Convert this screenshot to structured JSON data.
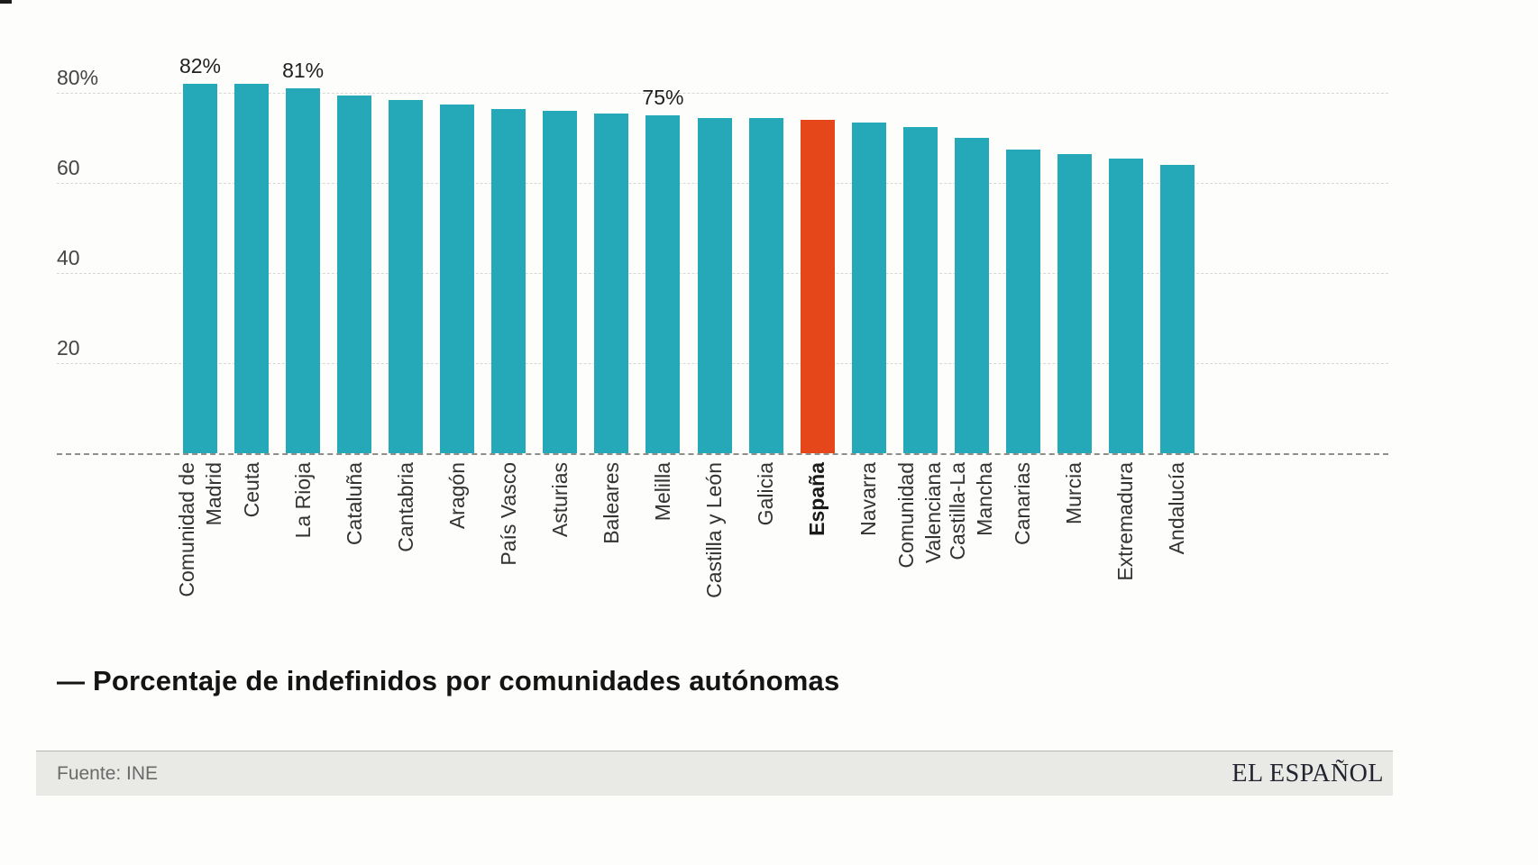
{
  "chart_data": {
    "type": "bar",
    "title": "— Porcentaje de indefinidos por comunidades autónomas",
    "xlabel": "",
    "ylabel": "",
    "ylim": [
      0,
      90
    ],
    "grid": "dashed-horizontal",
    "legend": "none",
    "colors": {
      "bar": "#25a9b8",
      "highlight": "#e5471b"
    },
    "yticks": [
      {
        "value": 80,
        "label": "80%"
      },
      {
        "value": 60,
        "label": "60"
      },
      {
        "value": 40,
        "label": "40"
      },
      {
        "value": 20,
        "label": "20"
      }
    ],
    "categories": [
      "Comunidad de Madrid",
      "Ceuta",
      "La Rioja",
      "Cataluña",
      "Cantabria",
      "Aragón",
      "País Vasco",
      "Asturias",
      "Baleares",
      "Melilla",
      "Castilla y León",
      "Galicia",
      "España",
      "Navarra",
      "Comunidad Valenciana",
      "Castilla-La Mancha",
      "Canarias",
      "Murcia",
      "Extremadura",
      "Andalucía"
    ],
    "category_lines": [
      [
        "Comunidad de",
        "Madrid"
      ],
      [
        "Ceuta"
      ],
      [
        "La Rioja"
      ],
      [
        "Cataluña"
      ],
      [
        "Cantabria"
      ],
      [
        "Aragón"
      ],
      [
        "País Vasco"
      ],
      [
        "Asturias"
      ],
      [
        "Baleares"
      ],
      [
        "Melilla"
      ],
      [
        "Castilla y León"
      ],
      [
        "Galicia"
      ],
      [
        "España"
      ],
      [
        "Navarra"
      ],
      [
        "Comunidad",
        "Valenciana"
      ],
      [
        "Castilla-La",
        "Mancha"
      ],
      [
        "Canarias"
      ],
      [
        "Murcia"
      ],
      [
        "Extremadura"
      ],
      [
        "Andalucía"
      ]
    ],
    "values": [
      82,
      82,
      81,
      79.5,
      78.5,
      77.5,
      76.5,
      76,
      75.5,
      75,
      74.5,
      74.5,
      74,
      73.5,
      72.5,
      70,
      67.5,
      66.5,
      65.5,
      64
    ],
    "value_labels": [
      "82%",
      "",
      "81%",
      "",
      "",
      "",
      "",
      "",
      "",
      "75%",
      "",
      "",
      "",
      "",
      "",
      "",
      "",
      "",
      "",
      ""
    ],
    "highlight_index": 12,
    "highlight_category": "España"
  },
  "footer": {
    "source": "Fuente: INE",
    "brand": "EL ESPAÑOL"
  }
}
